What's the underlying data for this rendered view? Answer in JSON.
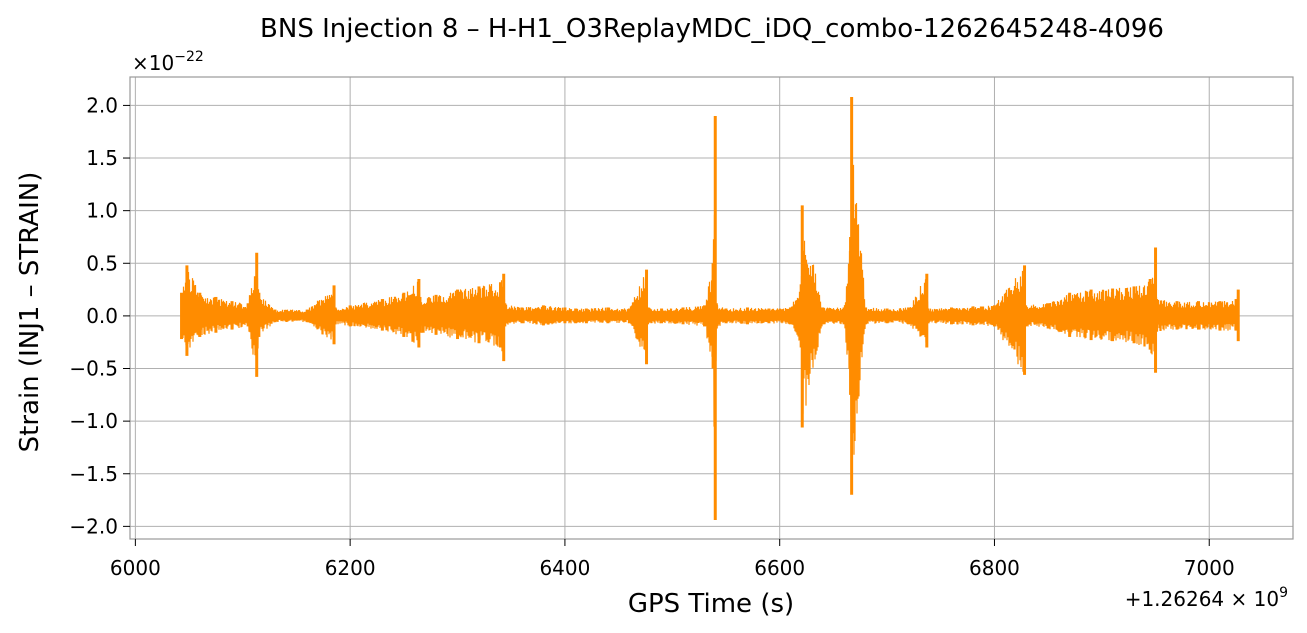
{
  "chart_data": {
    "type": "line",
    "title": "BNS Injection 8 – H-H1_O3ReplayMDC_iDQ_combo-1262645248-4096",
    "xlabel": "GPS Time (s)",
    "ylabel": "Strain (INJ1 – STRAIN)",
    "y_scale_label": "×10",
    "y_scale_exponent": "−22",
    "x_offset_label": "+1.26264 × 10",
    "x_offset_exponent": "9",
    "xlim": [
      5995,
      7078
    ],
    "ylim": [
      -2.12,
      2.27
    ],
    "x_ticks": [
      6000,
      6200,
      6400,
      6600,
      6800,
      7000
    ],
    "x_tick_labels": [
      "6000",
      "6200",
      "6400",
      "6600",
      "6800",
      "7000"
    ],
    "y_ticks": [
      2.0,
      1.5,
      1.0,
      0.5,
      0.0,
      -0.5,
      -1.0,
      -1.5,
      -2.0
    ],
    "y_tick_labels": [
      "2.0",
      "1.5",
      "1.0",
      "0.5",
      "0.0",
      "−0.5",
      "−1.0",
      "−1.5",
      "−2.0"
    ],
    "grid": true,
    "color": "#ff8c00",
    "series": [
      {
        "x": [
          6043,
          6048,
          6060,
          6075,
          6090,
          6105,
          6113,
          6115,
          6130,
          6160,
          6185,
          6186,
          6200,
          6230,
          6250,
          6264,
          6265,
          6280,
          6300,
          6320,
          6340,
          6343,
          6344,
          6360,
          6380,
          6400,
          6410,
          6420,
          6440,
          6460,
          6476,
          6477,
          6490,
          6510,
          6530,
          6538,
          6540,
          6541,
          6550,
          6570,
          6590,
          6610,
          6620,
          6621,
          6640,
          6660,
          6666,
          6667,
          6680,
          6700,
          6720,
          6737,
          6738,
          6760,
          6780,
          6800,
          6828,
          6829,
          6850,
          6870,
          6890,
          6910,
          6930,
          6945,
          6950,
          6951,
          6970,
          6990,
          7010,
          7025,
          7027
        ],
        "upper": [
          0.22,
          0.48,
          0.22,
          0.18,
          0.14,
          0.12,
          0.6,
          0.22,
          0.06,
          0.06,
          0.29,
          0.08,
          0.1,
          0.16,
          0.22,
          0.35,
          0.18,
          0.2,
          0.25,
          0.28,
          0.32,
          0.4,
          0.12,
          0.08,
          0.1,
          0.08,
          0.07,
          0.07,
          0.08,
          0.07,
          0.44,
          0.08,
          0.07,
          0.08,
          0.1,
          0.5,
          1.9,
          0.12,
          0.07,
          0.08,
          0.07,
          0.08,
          0.3,
          1.05,
          0.08,
          0.08,
          0.75,
          2.08,
          0.08,
          0.07,
          0.08,
          0.4,
          0.07,
          0.08,
          0.09,
          0.1,
          0.48,
          0.1,
          0.12,
          0.22,
          0.25,
          0.26,
          0.28,
          0.35,
          0.65,
          0.16,
          0.14,
          0.14,
          0.14,
          0.16,
          0.25
        ],
        "lower": [
          -0.22,
          -0.38,
          -0.2,
          -0.16,
          -0.13,
          -0.1,
          -0.58,
          -0.2,
          -0.06,
          -0.06,
          -0.27,
          -0.08,
          -0.1,
          -0.14,
          -0.2,
          -0.3,
          -0.16,
          -0.18,
          -0.22,
          -0.26,
          -0.3,
          -0.43,
          -0.1,
          -0.07,
          -0.09,
          -0.07,
          -0.07,
          -0.07,
          -0.07,
          -0.07,
          -0.46,
          -0.08,
          -0.07,
          -0.08,
          -0.1,
          -0.5,
          -1.94,
          -0.12,
          -0.07,
          -0.08,
          -0.07,
          -0.08,
          -0.3,
          -1.06,
          -0.08,
          -0.08,
          -0.75,
          -1.7,
          -0.08,
          -0.07,
          -0.08,
          -0.3,
          -0.07,
          -0.08,
          -0.09,
          -0.1,
          -0.56,
          -0.1,
          -0.12,
          -0.2,
          -0.23,
          -0.24,
          -0.26,
          -0.32,
          -0.54,
          -0.15,
          -0.13,
          -0.13,
          -0.14,
          -0.14,
          -0.24
        ]
      }
    ]
  }
}
